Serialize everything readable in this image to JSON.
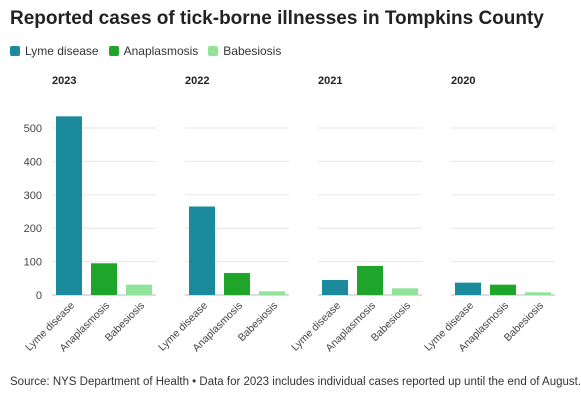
{
  "title": "Reported cases of tick-borne illnesses in Tompkins County",
  "legend": [
    {
      "label": "Lyme disease",
      "color": "#1a8a9c"
    },
    {
      "label": "Anaplasmosis",
      "color": "#1fa62a"
    },
    {
      "label": "Babesiosis",
      "color": "#8fe49a"
    }
  ],
  "footer": "Source: NYS Department of Health • Data for 2023 includes individual cases reported up until the end of August.",
  "chart_data": {
    "type": "bar",
    "categories": [
      "Lyme disease",
      "Anaplasmosis",
      "Babesiosis"
    ],
    "colors": [
      "#1a8a9c",
      "#1fa62a",
      "#8fe49a"
    ],
    "panels": [
      {
        "name": "2023",
        "values": [
          535,
          95,
          31
        ]
      },
      {
        "name": "2022",
        "values": [
          265,
          66,
          11
        ]
      },
      {
        "name": "2021",
        "values": [
          45,
          87,
          20
        ]
      },
      {
        "name": "2020",
        "values": [
          37,
          31,
          8
        ]
      }
    ],
    "ylim": [
      0,
      560
    ],
    "yticks": [
      0,
      100,
      200,
      300,
      400,
      500
    ],
    "grid": true,
    "legend_position": "top-left"
  }
}
